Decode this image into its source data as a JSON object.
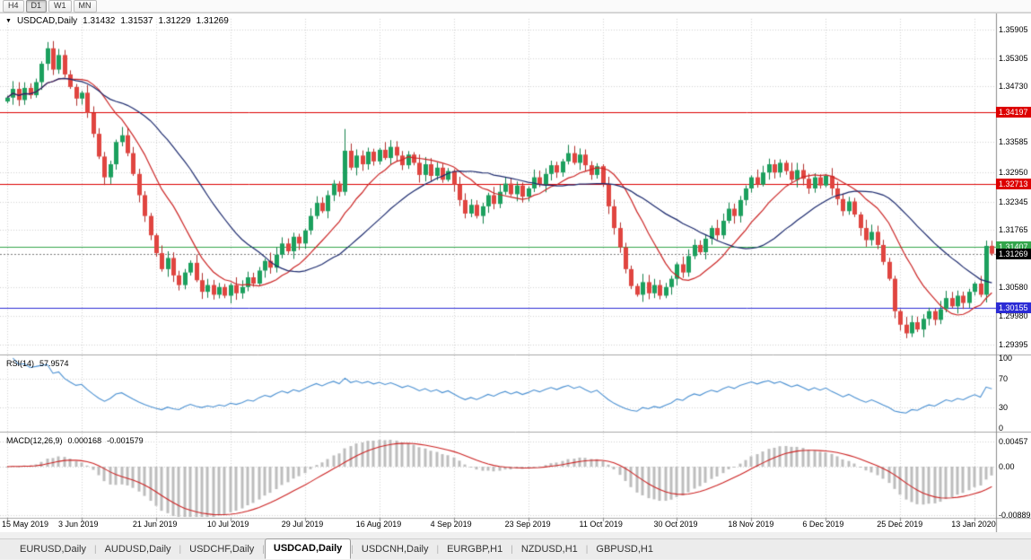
{
  "toolbar": {
    "timeframes": [
      {
        "label": "H4",
        "active": false
      },
      {
        "label": "D1",
        "active": true
      },
      {
        "label": "W1",
        "active": false
      },
      {
        "label": "MN",
        "active": false
      }
    ]
  },
  "chart_title": {
    "marker": "▼",
    "symbol": "USDCAD,Daily",
    "open": "1.31432",
    "high": "1.31537",
    "low": "1.31229",
    "close": "1.31269"
  },
  "price_axis": {
    "min": 1.2922,
    "max": 1.3613,
    "ticks": [
      {
        "label": "1.35905",
        "value": 1.35905
      },
      {
        "label": "1.35305",
        "value": 1.35305
      },
      {
        "label": "1.34730",
        "value": 1.3473
      },
      {
        "label": "1.33585",
        "value": 1.33585
      },
      {
        "label": "1.32950",
        "value": 1.3295
      },
      {
        "label": "1.32345",
        "value": 1.32345
      },
      {
        "label": "1.31765",
        "value": 1.31765
      },
      {
        "label": "1.30580",
        "value": 1.3058
      },
      {
        "label": "1.29980",
        "value": 1.2998
      },
      {
        "label": "1.29395",
        "value": 1.29395
      }
    ]
  },
  "levels": [
    {
      "label": "1.34197",
      "value": 1.34197,
      "color": "#DD0000"
    },
    {
      "label": "1.32713",
      "value": 1.32713,
      "color": "#DD0000"
    },
    {
      "label": "1.31407",
      "value": 1.31407,
      "color": "#33A64C"
    },
    {
      "label": "1.30155",
      "value": 1.30155,
      "color": "#2B2BD5"
    }
  ],
  "current_price": {
    "label": "1.31269",
    "value": 1.31269,
    "tag_color": "#000000"
  },
  "time_axis": {
    "ticks": [
      {
        "label": "15 May 2019",
        "index": 0
      },
      {
        "label": "3 Jun 2019",
        "index": 13
      },
      {
        "label": "21 Jun 2019",
        "index": 26
      },
      {
        "label": "10 Jul 2019",
        "index": 39
      },
      {
        "label": "29 Jul 2019",
        "index": 52
      },
      {
        "label": "16 Aug 2019",
        "index": 65
      },
      {
        "label": "4 Sep 2019",
        "index": 78
      },
      {
        "label": "23 Sep 2019",
        "index": 91
      },
      {
        "label": "11 Oct 2019",
        "index": 104
      },
      {
        "label": "30 Oct 2019",
        "index": 117
      },
      {
        "label": "18 Nov 2019",
        "index": 130
      },
      {
        "label": "6 Dec 2019",
        "index": 143
      },
      {
        "label": "25 Dec 2019",
        "index": 156
      },
      {
        "label": "13 Jan 2020",
        "index": 169
      }
    ]
  },
  "chart_data": {
    "type": "candlestick",
    "symbol": "USDCAD",
    "timeframe": "Daily",
    "first_open": 1.3442,
    "up_color": "#1CA05E",
    "up_border": "#15824D",
    "down_color": "#E04540",
    "down_border": "#B0312E",
    "closes": [
      1.345,
      1.3468,
      1.3445,
      1.347,
      1.3455,
      1.3482,
      1.352,
      1.3552,
      1.3508,
      1.3538,
      1.3498,
      1.3472,
      1.3448,
      1.346,
      1.3418,
      1.3375,
      1.3328,
      1.3285,
      1.3312,
      1.3358,
      1.3372,
      1.3335,
      1.3292,
      1.3248,
      1.3205,
      1.3165,
      1.3128,
      1.3095,
      1.3118,
      1.3082,
      1.3062,
      1.3088,
      1.3108,
      1.3072,
      1.3048,
      1.3062,
      1.3042,
      1.3058,
      1.304,
      1.3062,
      1.3045,
      1.3058,
      1.3078,
      1.3065,
      1.3092,
      1.3112,
      1.3098,
      1.3125,
      1.3148,
      1.3132,
      1.3162,
      1.3148,
      1.3175,
      1.3205,
      1.3232,
      1.3215,
      1.3248,
      1.3272,
      1.3255,
      1.334,
      1.3305,
      1.333,
      1.3312,
      1.3338,
      1.3318,
      1.3342,
      1.3325,
      1.3348,
      1.333,
      1.331,
      1.3332,
      1.3315,
      1.329,
      1.3312,
      1.3288,
      1.3305,
      1.328,
      1.3298,
      1.327,
      1.3238,
      1.321,
      1.3228,
      1.3205,
      1.3225,
      1.3248,
      1.323,
      1.3255,
      1.3272,
      1.325,
      1.3268,
      1.3245,
      1.3262,
      1.3285,
      1.327,
      1.3292,
      1.331,
      1.3295,
      1.3318,
      1.3335,
      1.3315,
      1.3332,
      1.331,
      1.329,
      1.3308,
      1.327,
      1.3225,
      1.318,
      1.314,
      1.3095,
      1.306,
      1.3042,
      1.3068,
      1.3045,
      1.3062,
      1.304,
      1.3058,
      1.3075,
      1.3105,
      1.3088,
      1.3122,
      1.3145,
      1.313,
      1.3158,
      1.318,
      1.3165,
      1.3195,
      1.322,
      1.3205,
      1.3238,
      1.3262,
      1.3285,
      1.327,
      1.3295,
      1.3312,
      1.3295,
      1.3315,
      1.3298,
      1.328,
      1.33,
      1.3282,
      1.3262,
      1.3285,
      1.3268,
      1.3288,
      1.3262,
      1.324,
      1.3215,
      1.3235,
      1.3208,
      1.318,
      1.3155,
      1.3172,
      1.3145,
      1.311,
      1.3075,
      1.3008,
      1.298,
      1.2962,
      1.2985,
      1.297,
      1.2992,
      1.3008,
      1.299,
      1.3012,
      1.3035,
      1.3018,
      1.304,
      1.3025,
      1.3048,
      1.3065,
      1.3042,
      1.3143,
      1.31269
    ],
    "overrides": {
      "7": {
        "h": 1.3565
      },
      "59": {
        "h": 1.3385
      },
      "157": {
        "l": 1.2952
      },
      "171": {
        "h": 1.3154
      },
      "172": {
        "o": 1.31432,
        "h": 1.31537,
        "l": 1.31229,
        "c": 1.31269
      }
    }
  },
  "moving_averages": [
    {
      "period": 12,
      "color": "#CC2626"
    },
    {
      "period": 26,
      "color": "#1C2A6E"
    }
  ],
  "rsi": {
    "name": "RSI(14)",
    "value_label": "57.9574",
    "period": 14,
    "color": "#4A90D2",
    "guide_levels": [
      70,
      30
    ],
    "axis": [
      {
        "label": "100",
        "value": 100
      },
      {
        "label": "70",
        "value": 70
      },
      {
        "label": "30",
        "value": 30
      },
      {
        "label": "0",
        "value": 0
      }
    ]
  },
  "macd": {
    "name": "MACD(12,26,9)",
    "value_main": "0.000168",
    "value_signal": "-0.001579",
    "fast": 12,
    "slow": 26,
    "signal": 9,
    "histogram_color": "#BDBDBD",
    "signal_color": "#CC2222",
    "axis": [
      {
        "label": "0.00457",
        "value": 0.00457
      },
      {
        "label": "0.00",
        "value": 0
      },
      {
        "label": "-0.00889",
        "value": -0.00889
      }
    ]
  },
  "tabs": [
    {
      "label": "EURUSD,Daily",
      "active": false
    },
    {
      "label": "AUDUSD,Daily",
      "active": false
    },
    {
      "label": "USDCHF,Daily",
      "active": false
    },
    {
      "label": "USDCAD,Daily",
      "active": true
    },
    {
      "label": "USDCNH,Daily",
      "active": false
    },
    {
      "label": "EURGBP,H1",
      "active": false
    },
    {
      "label": "NZDUSD,H1",
      "active": false
    },
    {
      "label": "GBPUSD,H1",
      "active": false
    }
  ]
}
